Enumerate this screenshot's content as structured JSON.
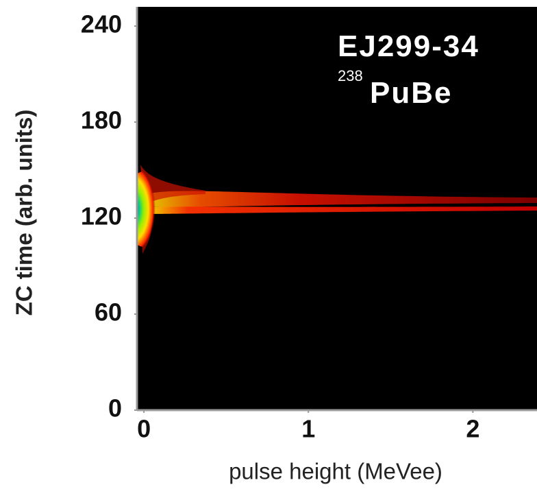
{
  "chart_data": {
    "type": "density",
    "xlabel": "pulse height (MeVee)",
    "ylabel": "ZC time (arb. units)",
    "annotations": [
      {
        "text": "EJ299-34"
      },
      {
        "superscript": "238",
        "text": "PuBe"
      }
    ],
    "xlim": [
      -0.042,
      2.39
    ],
    "xticks": [
      0,
      1,
      2
    ],
    "ylim": [
      0,
      252
    ],
    "yticks": [
      0,
      60,
      120,
      180,
      240
    ],
    "grid": false
  }
}
